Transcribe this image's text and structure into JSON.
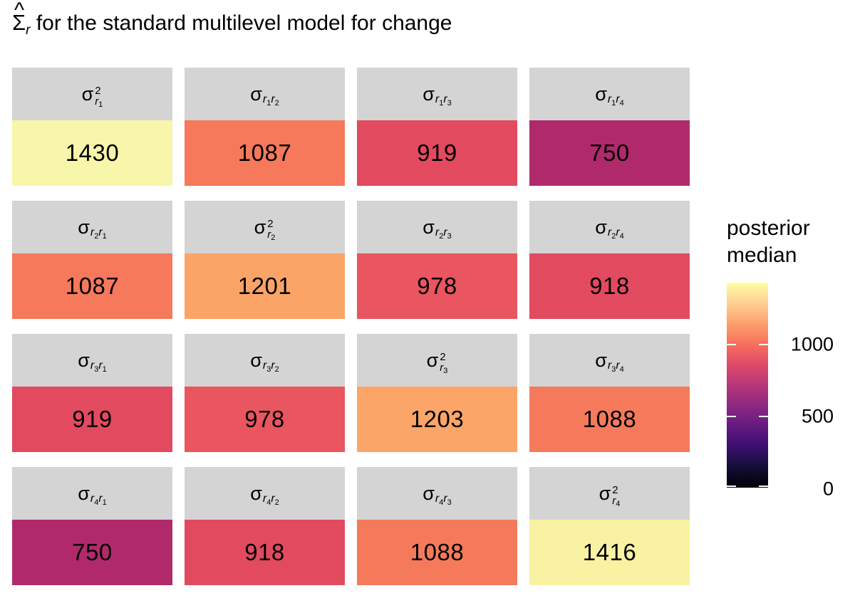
{
  "title": {
    "sigma": "Σ",
    "hat": "^",
    "subscript": "r",
    "rest": " for the standard multilevel model for change"
  },
  "symbols": {
    "sigma": "σ",
    "squared": "2",
    "r": "r"
  },
  "colors": {
    "background": "#FFFFFF",
    "strip_bg": "#D4D4D4",
    "text": "#000000",
    "magma_stops": [
      "#000004",
      "#140E36",
      "#3B0F70",
      "#641A80",
      "#8C2981",
      "#B73779",
      "#DE4968",
      "#F7705C",
      "#FE9F6D",
      "#FECF92",
      "#FCFFA4"
    ]
  },
  "facets": [
    {
      "kind": "variance",
      "i": "1",
      "value": "1430",
      "color": "#F7F6AB"
    },
    {
      "kind": "covariance",
      "i": "1",
      "j": "2",
      "value": "1087",
      "color": "#F5795A"
    },
    {
      "kind": "covariance",
      "i": "1",
      "j": "3",
      "value": "919",
      "color": "#E24A60"
    },
    {
      "kind": "covariance",
      "i": "1",
      "j": "4",
      "value": "750",
      "color": "#B02A6B"
    },
    {
      "kind": "covariance",
      "i": "2",
      "j": "1",
      "value": "1087",
      "color": "#F5795A"
    },
    {
      "kind": "variance",
      "i": "2",
      "value": "1201",
      "color": "#FBA468"
    },
    {
      "kind": "covariance",
      "i": "2",
      "j": "3",
      "value": "978",
      "color": "#E9565F"
    },
    {
      "kind": "covariance",
      "i": "2",
      "j": "4",
      "value": "918",
      "color": "#E24A60"
    },
    {
      "kind": "covariance",
      "i": "3",
      "j": "1",
      "value": "919",
      "color": "#E24A60"
    },
    {
      "kind": "covariance",
      "i": "3",
      "j": "2",
      "value": "978",
      "color": "#E9565F"
    },
    {
      "kind": "variance",
      "i": "3",
      "value": "1203",
      "color": "#FBA569"
    },
    {
      "kind": "covariance",
      "i": "3",
      "j": "4",
      "value": "1088",
      "color": "#F57A5B"
    },
    {
      "kind": "covariance",
      "i": "4",
      "j": "1",
      "value": "750",
      "color": "#B02A6B"
    },
    {
      "kind": "covariance",
      "i": "4",
      "j": "2",
      "value": "918",
      "color": "#E24A60"
    },
    {
      "kind": "covariance",
      "i": "4",
      "j": "3",
      "value": "1088",
      "color": "#F57A5B"
    },
    {
      "kind": "variance",
      "i": "4",
      "value": "1416",
      "color": "#F9F2A2"
    }
  ],
  "legend": {
    "title_line1": "posterior",
    "title_line2": "median",
    "ticks": [
      {
        "label": "1000",
        "frac_from_top": 0.303
      },
      {
        "label": "500",
        "frac_from_top": 0.652
      },
      {
        "label": "0",
        "frac_from_top": 1.0
      }
    ]
  },
  "chart_data": {
    "type": "heatmap",
    "title": "Σ̂_r for the standard multilevel model for change",
    "legend_title": "posterior median",
    "colormap": "magma",
    "scale_limits": [
      0,
      1435
    ],
    "legend_ticks": [
      0,
      500,
      1000
    ],
    "legend_position": "right",
    "facet_layout": "4x4 grid, one tile per facet, gray strip label above each tile",
    "rows": [
      "r1",
      "r2",
      "r3",
      "r4"
    ],
    "cols": [
      "r1",
      "r2",
      "r3",
      "r4"
    ],
    "cell_labels": [
      [
        "σ²_r1",
        "σ_r1r2",
        "σ_r1r3",
        "σ_r1r4"
      ],
      [
        "σ_r2r1",
        "σ²_r2",
        "σ_r2r3",
        "σ_r2r4"
      ],
      [
        "σ_r3r1",
        "σ_r3r2",
        "σ²_r3",
        "σ_r3r4"
      ],
      [
        "σ_r4r1",
        "σ_r4r2",
        "σ_r4r3",
        "σ²_r4"
      ]
    ],
    "matrix": [
      [
        1430,
        1087,
        919,
        750
      ],
      [
        1087,
        1201,
        978,
        918
      ],
      [
        919,
        978,
        1203,
        1088
      ],
      [
        750,
        918,
        1088,
        1416
      ]
    ]
  }
}
